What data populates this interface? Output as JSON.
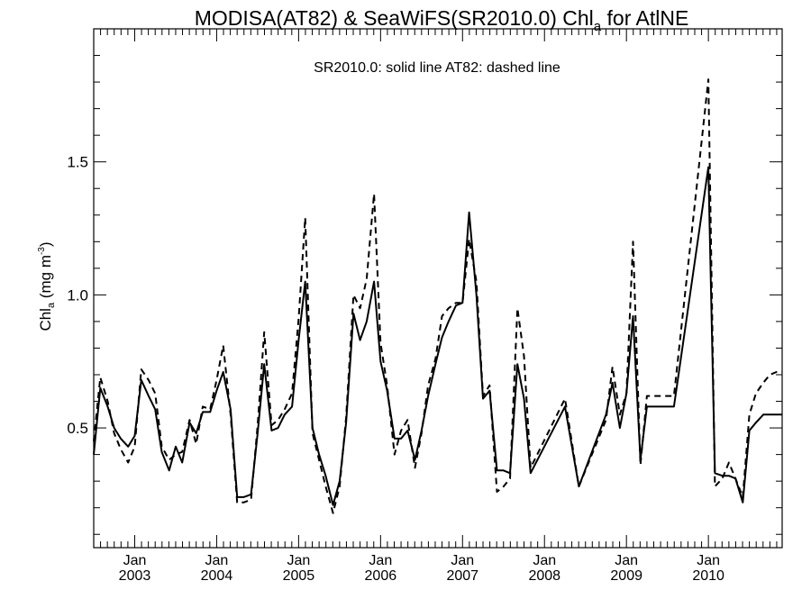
{
  "chart_data": {
    "type": "line",
    "title_main": "MODISA(AT82) & SeaWiFS(SR2010.0)  Chl",
    "title_sub": "a",
    "title_tail": " for AtlNE",
    "annotation": "SR2010.0: solid line   AT82: dashed line",
    "ylabel_main": "Chl",
    "ylabel_sub": "a",
    "ylabel_units": " (mg m",
    "ylabel_sup": "-3",
    "ylabel_close": ")",
    "xlim": [
      2002.5,
      2010.9
    ],
    "ylim": [
      0.05,
      2.0
    ],
    "y_ticks": [
      {
        "value": 0.5,
        "label": "0.5"
      },
      {
        "value": 1.0,
        "label": "1.0"
      },
      {
        "value": 1.5,
        "label": "1.5"
      }
    ],
    "x_ticks": [
      {
        "value": 2003.0,
        "month": "Jan",
        "year": "2003"
      },
      {
        "value": 2004.0,
        "month": "Jan",
        "year": "2004"
      },
      {
        "value": 2005.0,
        "month": "Jan",
        "year": "2005"
      },
      {
        "value": 2006.0,
        "month": "Jan",
        "year": "2006"
      },
      {
        "value": 2007.0,
        "month": "Jan",
        "year": "2007"
      },
      {
        "value": 2008.0,
        "month": "Jan",
        "year": "2008"
      },
      {
        "value": 2009.0,
        "month": "Jan",
        "year": "2009"
      },
      {
        "value": 2010.0,
        "month": "Jan",
        "year": "2010"
      }
    ],
    "series": [
      {
        "name": "SR2010.0",
        "style": "solid",
        "color": "#000000",
        "x": [
          2002.5,
          2002.58,
          2002.67,
          2002.75,
          2002.83,
          2002.92,
          2003.0,
          2003.08,
          2003.17,
          2003.25,
          2003.33,
          2003.42,
          2003.5,
          2003.58,
          2003.67,
          2003.75,
          2003.83,
          2003.92,
          2004.0,
          2004.08,
          2004.17,
          2004.25,
          2004.33,
          2004.42,
          2004.5,
          2004.58,
          2004.67,
          2004.75,
          2004.83,
          2004.92,
          2005.0,
          2005.08,
          2005.17,
          2005.25,
          2005.33,
          2005.42,
          2005.5,
          2005.58,
          2005.67,
          2005.75,
          2005.83,
          2005.92,
          2006.0,
          2006.08,
          2006.17,
          2006.25,
          2006.33,
          2006.42,
          2006.5,
          2006.58,
          2006.67,
          2006.75,
          2006.83,
          2006.92,
          2007.0,
          2007.08,
          2007.17,
          2007.25,
          2007.33,
          2007.42,
          2007.5,
          2007.58,
          2007.67,
          2007.75,
          2007.83,
          2008.25,
          2008.42,
          2008.75,
          2008.83,
          2008.92,
          2009.0,
          2009.08,
          2009.17,
          2009.25,
          2009.58,
          2010.0,
          2010.08,
          2010.17,
          2010.25,
          2010.33,
          2010.42,
          2010.5,
          2010.58,
          2010.67,
          2010.75,
          2010.83,
          2010.9
        ],
        "y": [
          0.4,
          0.65,
          0.58,
          0.5,
          0.46,
          0.43,
          0.47,
          0.68,
          0.62,
          0.57,
          0.41,
          0.34,
          0.43,
          0.37,
          0.52,
          0.48,
          0.56,
          0.56,
          0.64,
          0.71,
          0.57,
          0.24,
          0.24,
          0.25,
          0.48,
          0.74,
          0.49,
          0.5,
          0.55,
          0.58,
          0.83,
          1.05,
          0.5,
          0.4,
          0.32,
          0.21,
          0.3,
          0.52,
          0.93,
          0.83,
          0.9,
          1.05,
          0.75,
          0.64,
          0.46,
          0.46,
          0.49,
          0.38,
          0.49,
          0.62,
          0.74,
          0.84,
          0.9,
          0.96,
          0.97,
          1.31,
          1.0,
          0.61,
          0.64,
          0.34,
          0.34,
          0.33,
          0.74,
          0.61,
          0.33,
          0.58,
          0.28,
          0.55,
          0.67,
          0.5,
          0.63,
          0.92,
          0.38,
          0.58,
          0.58,
          1.48,
          0.33,
          0.32,
          0.32,
          0.31,
          0.22,
          0.49,
          0.52,
          0.55,
          0.55,
          0.55,
          0.55
        ]
      },
      {
        "name": "AT82",
        "style": "dashed",
        "color": "#000000",
        "x": [
          2002.5,
          2002.58,
          2002.67,
          2002.75,
          2002.83,
          2002.92,
          2003.0,
          2003.08,
          2003.17,
          2003.25,
          2003.33,
          2003.42,
          2003.5,
          2003.58,
          2003.67,
          2003.75,
          2003.83,
          2003.92,
          2004.0,
          2004.08,
          2004.17,
          2004.25,
          2004.33,
          2004.42,
          2004.5,
          2004.58,
          2004.67,
          2004.75,
          2004.83,
          2004.92,
          2005.0,
          2005.08,
          2005.17,
          2005.25,
          2005.33,
          2005.42,
          2005.5,
          2005.58,
          2005.67,
          2005.75,
          2005.83,
          2005.92,
          2006.0,
          2006.08,
          2006.17,
          2006.25,
          2006.33,
          2006.42,
          2006.5,
          2006.58,
          2006.67,
          2006.75,
          2006.83,
          2006.92,
          2007.0,
          2007.08,
          2007.17,
          2007.25,
          2007.33,
          2007.42,
          2007.5,
          2007.58,
          2007.67,
          2007.75,
          2007.83,
          2008.25,
          2008.42,
          2008.75,
          2008.83,
          2008.92,
          2009.0,
          2009.08,
          2009.17,
          2009.25,
          2009.58,
          2010.0,
          2010.08,
          2010.17,
          2010.25,
          2010.33,
          2010.42,
          2010.5,
          2010.58,
          2010.67,
          2010.75,
          2010.83,
          2010.9
        ],
        "y": [
          0.45,
          0.69,
          0.6,
          0.48,
          0.42,
          0.37,
          0.43,
          0.72,
          0.68,
          0.63,
          0.43,
          0.38,
          0.4,
          0.41,
          0.53,
          0.44,
          0.58,
          0.57,
          0.68,
          0.81,
          0.55,
          0.22,
          0.22,
          0.23,
          0.51,
          0.86,
          0.51,
          0.53,
          0.57,
          0.63,
          0.91,
          1.29,
          0.48,
          0.38,
          0.28,
          0.18,
          0.28,
          0.54,
          1.0,
          0.95,
          1.06,
          1.38,
          0.82,
          0.66,
          0.4,
          0.49,
          0.53,
          0.35,
          0.48,
          0.66,
          0.76,
          0.92,
          0.95,
          0.97,
          0.97,
          1.21,
          1.05,
          0.62,
          0.66,
          0.26,
          0.28,
          0.31,
          0.95,
          0.77,
          0.35,
          0.61,
          0.28,
          0.53,
          0.73,
          0.55,
          0.63,
          1.2,
          0.36,
          0.62,
          0.62,
          1.81,
          0.28,
          0.31,
          0.37,
          0.31,
          0.24,
          0.55,
          0.63,
          0.67,
          0.7,
          0.71,
          0.71
        ]
      }
    ],
    "grid": false,
    "legend": "annotation-text top-center"
  }
}
